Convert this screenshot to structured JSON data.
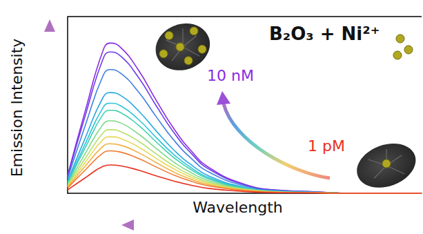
{
  "chart_data": {
    "type": "line",
    "x_label": "Wavelength",
    "y_label": "Emission Intensity",
    "annotations": [
      {
        "text": "B₂O₃ + Ni²⁺",
        "color": "#111111"
      },
      {
        "text": "10 nM",
        "color": "#8a2be2"
      },
      {
        "text": "1 pM",
        "color": "#e83020"
      }
    ],
    "x": [
      0,
      5,
      10,
      12,
      15,
      20,
      25,
      30,
      35,
      40,
      50,
      60,
      70,
      80,
      100
    ],
    "series": [
      {
        "color": "#8a2be2",
        "values": [
          10.2,
          46.8,
          80.8,
          85,
          82.5,
          69.7,
          52.7,
          36.6,
          23.8,
          14.5,
          5.1,
          1.7,
          0.9,
          0,
          0
        ]
      },
      {
        "color": "#6a3de8",
        "values": [
          9.6,
          44,
          76,
          80,
          77.6,
          65.6,
          49.6,
          34.4,
          22.4,
          13.6,
          4.8,
          1.6,
          0.8,
          0,
          0
        ]
      },
      {
        "color": "#3f7fe0",
        "values": [
          8.4,
          38.5,
          66.5,
          70,
          67.9,
          57.4,
          43.4,
          30.1,
          19.6,
          11.9,
          4.2,
          1.4,
          0.7,
          0,
          0
        ]
      },
      {
        "color": "#29a8e0",
        "values": [
          6.8,
          31.4,
          54.2,
          57,
          55.3,
          46.7,
          35.3,
          24.5,
          16,
          9.7,
          3.4,
          1.1,
          0.6,
          0,
          0
        ]
      },
      {
        "color": "#2cc4d8",
        "values": [
          6.1,
          28.1,
          48.5,
          51,
          49.5,
          41.8,
          31.6,
          21.9,
          14.3,
          8.7,
          3.1,
          1,
          0.5,
          0,
          0
        ]
      },
      {
        "color": "#3fd0b0",
        "values": [
          5.6,
          25.9,
          44.7,
          47,
          45.6,
          38.5,
          29.1,
          20.2,
          13.2,
          8,
          2.8,
          0.9,
          0.5,
          0,
          0
        ]
      },
      {
        "color": "#7ed98a",
        "values": [
          4.9,
          22.6,
          39,
          41,
          39.8,
          33.6,
          25.4,
          17.6,
          11.5,
          7,
          2.5,
          0.8,
          0.4,
          0,
          0
        ]
      },
      {
        "color": "#b5e06a",
        "values": [
          4.3,
          19.8,
          34.2,
          36,
          34.9,
          29.5,
          22.3,
          15.5,
          10.1,
          6.1,
          2.2,
          0.7,
          0.4,
          0,
          0
        ]
      },
      {
        "color": "#e8d85a",
        "values": [
          3.8,
          17.6,
          30.4,
          32,
          31,
          26.2,
          19.8,
          13.8,
          9,
          5.4,
          1.9,
          0.6,
          0.3,
          0,
          0
        ]
      },
      {
        "color": "#f0b040",
        "values": [
          3.4,
          15.4,
          26.6,
          28,
          27.2,
          23,
          17.4,
          12,
          7.8,
          4.8,
          1.7,
          0.6,
          0.3,
          0,
          0
        ]
      },
      {
        "color": "#f07a30",
        "values": [
          2.9,
          13.2,
          22.8,
          24,
          23.3,
          19.7,
          14.9,
          10.3,
          6.7,
          4.1,
          1.4,
          0.5,
          0.2,
          0,
          0
        ]
      },
      {
        "color": "#e83020",
        "values": [
          1.9,
          8.8,
          15.2,
          16,
          15.5,
          13.1,
          9.9,
          6.9,
          4.5,
          2.7,
          1,
          0.3,
          0.2,
          0,
          0
        ]
      }
    ],
    "xlim": [
      0,
      100
    ],
    "ylim": [
      0,
      100
    ],
    "tick_labels": false,
    "grid": false
  }
}
